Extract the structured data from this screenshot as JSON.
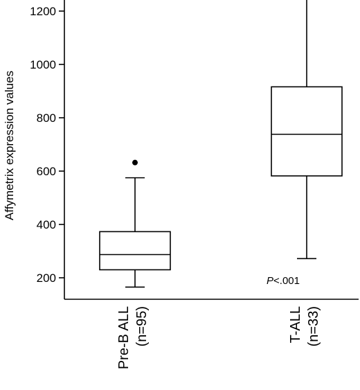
{
  "chart_data": {
    "type": "boxplot",
    "title": "",
    "xlabel": "",
    "ylabel": "Affymetrix expression values",
    "ylim": [
      140,
      1255
    ],
    "yticks": [
      200,
      400,
      600,
      800,
      1000,
      1200
    ],
    "grid": false,
    "categories": [
      {
        "name": "Pre-B ALL",
        "n_label": "(n=95)"
      },
      {
        "name": "T-ALL",
        "n_label": "(n=33)"
      }
    ],
    "series": [
      {
        "whisker_low": 165,
        "q1": 230,
        "median": 287,
        "q3": 373,
        "whisker_high": 575,
        "outliers": [
          632
        ]
      },
      {
        "whisker_low": 272,
        "q1": 582,
        "median": 738,
        "q3": 916,
        "whisker_high": 1255,
        "outliers": []
      }
    ],
    "annotation": {
      "p_italic": "P",
      "p_rest": "<.001"
    }
  }
}
